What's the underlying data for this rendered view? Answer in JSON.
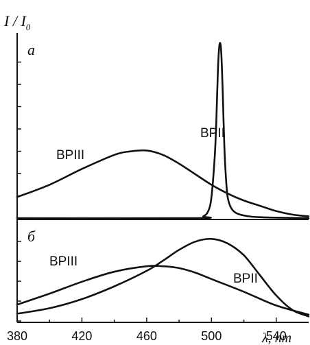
{
  "chart_data": [
    {
      "type": "line",
      "panel_label": "a",
      "xlim": [
        380,
        560
      ],
      "ylim": [
        0,
        1
      ],
      "grid": false,
      "series": [
        {
          "name": "BPII",
          "x": [
            380,
            490,
            495,
            498,
            500,
            502,
            503,
            504,
            505,
            506,
            507,
            508,
            509,
            510,
            512,
            515,
            520,
            530,
            560
          ],
          "y": [
            0.0,
            0.0,
            0.01,
            0.04,
            0.12,
            0.35,
            0.55,
            0.85,
            0.99,
            0.95,
            0.7,
            0.4,
            0.22,
            0.12,
            0.06,
            0.03,
            0.015,
            0.005,
            0.0
          ]
        },
        {
          "name": "BPIII",
          "x": [
            380,
            400,
            420,
            440,
            450,
            460,
            470,
            480,
            490,
            500,
            510,
            520,
            530,
            540,
            550,
            560
          ],
          "y": [
            0.12,
            0.19,
            0.28,
            0.36,
            0.38,
            0.385,
            0.36,
            0.31,
            0.25,
            0.19,
            0.14,
            0.1,
            0.07,
            0.04,
            0.02,
            0.01
          ]
        }
      ],
      "labels": [
        "BPII",
        "BPIII"
      ]
    },
    {
      "type": "line",
      "panel_label": "б",
      "xlim": [
        380,
        560
      ],
      "ylim": [
        0,
        1
      ],
      "grid": false,
      "series": [
        {
          "name": "BPII",
          "x": [
            380,
            400,
            420,
            440,
            460,
            470,
            480,
            490,
            500,
            510,
            520,
            530,
            540,
            550,
            560
          ],
          "y": [
            0.08,
            0.14,
            0.24,
            0.38,
            0.55,
            0.66,
            0.78,
            0.87,
            0.9,
            0.85,
            0.72,
            0.5,
            0.28,
            0.12,
            0.05
          ]
        },
        {
          "name": "BPIII",
          "x": [
            380,
            400,
            420,
            440,
            460,
            470,
            480,
            490,
            500,
            520,
            540,
            560
          ],
          "y": [
            0.18,
            0.3,
            0.43,
            0.54,
            0.6,
            0.6,
            0.58,
            0.53,
            0.46,
            0.32,
            0.17,
            0.07
          ]
        }
      ],
      "labels": [
        "BPIII",
        "BPII"
      ]
    }
  ],
  "axes": {
    "ylabel": "I / I0",
    "ylabel_main": "I / I",
    "ylabel_sub": "0",
    "xlabel": "λ, nm",
    "xticks": [
      380,
      420,
      460,
      500,
      540
    ]
  },
  "labels": {
    "panel_a": "a",
    "panel_b": "б",
    "bpii": "BPII",
    "bpiii": "BPIII"
  }
}
